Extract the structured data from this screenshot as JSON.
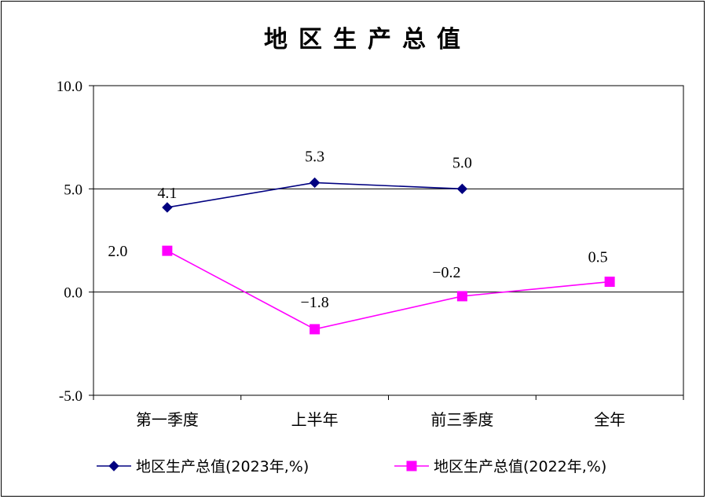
{
  "chart_data": {
    "type": "line",
    "title": "地区生产总值",
    "categories": [
      "第一季度",
      "上半年",
      "前三季度",
      "全年"
    ],
    "ylim": [
      -5.0,
      10.0
    ],
    "yticks": [
      "10.0",
      "5.0",
      "0.0",
      "-5.0"
    ],
    "ytick_values": [
      10,
      5,
      0,
      -5
    ],
    "grid": "horizontal lines at 5.0 and 0.0",
    "legend_placement": "bottom",
    "series": [
      {
        "name": "地区生产总值(2023年,%)",
        "values": [
          4.1,
          5.3,
          5.0,
          null
        ],
        "labels": [
          "4.1",
          "5.3",
          "5.0",
          ""
        ],
        "color": "#000080",
        "marker": "diamond"
      },
      {
        "name": "地区生产总值(2022年,%)",
        "values": [
          2.0,
          -1.8,
          -0.2,
          0.5
        ],
        "labels": [
          "2.0",
          "−1.8",
          "−0.2",
          "0.5"
        ],
        "color": "#FF00FF",
        "marker": "square"
      }
    ]
  }
}
